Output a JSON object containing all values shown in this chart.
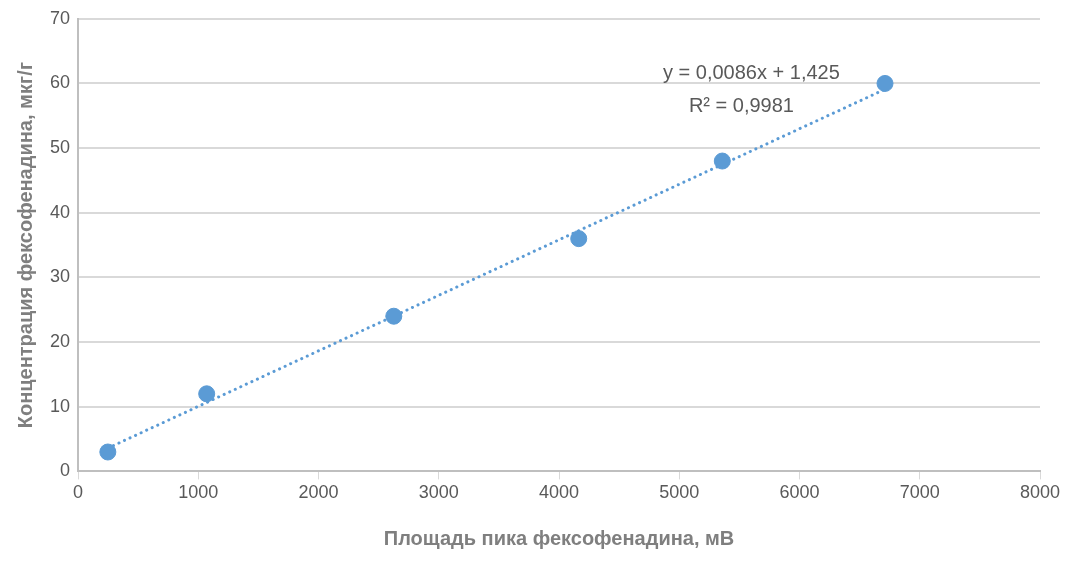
{
  "chart_data": {
    "type": "scatter",
    "xlabel": "Площадь пика фексофенадина, мВ",
    "ylabel": "Концентрация фексофенадина, мкг/г",
    "series": [
      {
        "color": "#5b9bd5",
        "x": [
          248,
          1070,
          2626,
          4164,
          5358,
          6711
        ],
        "values": [
          3,
          12,
          24,
          36,
          48,
          60
        ],
        "marker": "circle"
      },
      {
        "type": "line",
        "color": "#5b9bd5",
        "x": [
          248,
          6711
        ],
        "values": [
          3.6,
          59.1
        ],
        "line_style": "dotted",
        "marker": "none"
      }
    ],
    "xlim": [
      0,
      8000
    ],
    "xticks": [
      0,
      1000,
      2000,
      3000,
      4000,
      5000,
      6000,
      7000,
      8000
    ],
    "ylim": [
      0,
      70
    ],
    "yticks": [
      0,
      10,
      20,
      30,
      40,
      50,
      60,
      70
    ],
    "grid": "y",
    "legend": false,
    "annotations": [
      "y = 0,0086x + 1,425",
      "R² = 0,9981"
    ]
  }
}
